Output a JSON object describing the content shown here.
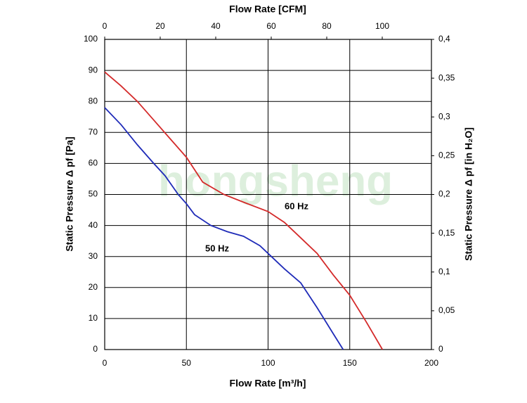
{
  "chart_data": {
    "type": "line",
    "watermark": "hongsheng",
    "xlabel": "Flow Rate [m³/h]",
    "x2label": "Flow Rate [CFM]",
    "ylabel": "Static Pressure Δ pf [Pa]",
    "y2label": "Static Pressure Δ pf [in H₂O]",
    "xlim": [
      0,
      200
    ],
    "xticks": [
      0,
      50,
      100,
      150,
      200
    ],
    "x2lim": [
      0,
      117.72
    ],
    "x2ticks": [
      0,
      20,
      40,
      60,
      80,
      100
    ],
    "ylim": [
      0,
      100
    ],
    "yticks": [
      0,
      10,
      20,
      30,
      40,
      50,
      60,
      70,
      80,
      90,
      100
    ],
    "y2lim": [
      0,
      0.4
    ],
    "y2ticks": [
      0,
      {
        "value": 0.05,
        "label": "0,05"
      },
      {
        "value": 0.1,
        "label": "0,1"
      },
      {
        "value": 0.15,
        "label": "0,15"
      },
      {
        "value": 0.2,
        "label": "0,2"
      },
      {
        "value": 0.25,
        "label": "0,25"
      },
      {
        "value": 0.3,
        "label": "0,3"
      },
      {
        "value": 0.35,
        "label": "0,35"
      },
      {
        "value": 0.4,
        "label": "0,4"
      }
    ],
    "grid": true,
    "series": [
      {
        "name": "60 Hz",
        "color": "#d42a2a",
        "x": [
          0,
          10,
          20,
          30,
          40,
          50,
          60,
          73,
          85,
          100,
          110,
          120,
          130,
          140,
          150,
          160,
          170
        ],
        "values": [
          89.5,
          85,
          80,
          74,
          68,
          62,
          54,
          50,
          47.5,
          44.5,
          41,
          36,
          31,
          24,
          17.5,
          9,
          0
        ]
      },
      {
        "name": "50 Hz",
        "color": "#1f2bb8",
        "x": [
          0,
          10,
          20,
          30,
          37,
          45,
          50,
          55,
          65,
          75,
          85,
          95,
          100,
          110,
          120,
          130,
          140,
          146
        ],
        "values": [
          78,
          72.5,
          66,
          60,
          56,
          50,
          47,
          43.5,
          40,
          38,
          36.5,
          33.5,
          31,
          26,
          21.5,
          13.5,
          5,
          0
        ]
      }
    ]
  }
}
